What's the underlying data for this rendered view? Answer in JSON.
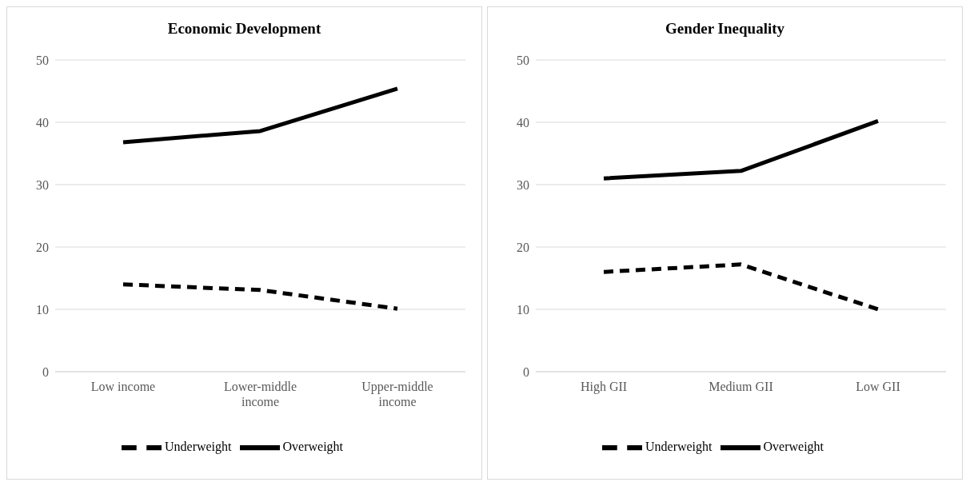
{
  "chart_data": [
    {
      "type": "line",
      "title": "Economic Development",
      "categories": [
        "Low income",
        "Lower-middle income",
        "Upper-middle income"
      ],
      "series": [
        {
          "name": "Underweight",
          "color": "#000000",
          "line_style": "dashed",
          "values": [
            14.0,
            13.1,
            10.1
          ]
        },
        {
          "name": "Overweight",
          "color": "#000000",
          "line_style": "solid",
          "values": [
            36.8,
            38.6,
            45.4
          ]
        }
      ],
      "ylim": [
        0,
        50
      ],
      "yticks": [
        0,
        10,
        20,
        30,
        40,
        50
      ],
      "grid": "y",
      "legend": "bottom",
      "marker": "none"
    },
    {
      "type": "line",
      "title": "Gender Inequality",
      "categories": [
        "High GII",
        "Medium GII",
        "Low GII"
      ],
      "series": [
        {
          "name": "Underweight",
          "color": "#000000",
          "line_style": "dashed",
          "values": [
            16.0,
            17.2,
            10.0
          ]
        },
        {
          "name": "Overweight",
          "color": "#000000",
          "line_style": "solid",
          "values": [
            31.0,
            32.2,
            40.2
          ]
        }
      ],
      "ylim": [
        0,
        50
      ],
      "yticks": [
        0,
        10,
        20,
        30,
        40,
        50
      ],
      "grid": "y",
      "legend": "bottom",
      "marker": "none"
    }
  ]
}
